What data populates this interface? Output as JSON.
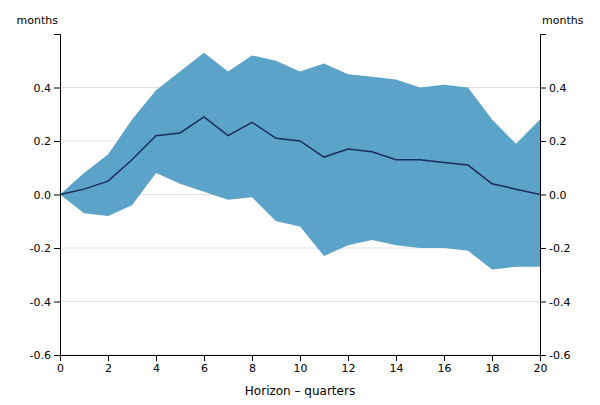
{
  "chart_data": {
    "type": "line",
    "xlabel": "Horizon – quarters",
    "ylabel": "months",
    "y2label": "months",
    "x": [
      0,
      1,
      2,
      3,
      4,
      5,
      6,
      7,
      8,
      9,
      10,
      11,
      12,
      13,
      14,
      15,
      16,
      17,
      18,
      19,
      20
    ],
    "series": [
      {
        "type": "area",
        "color": "#5ba3c9",
        "upper": [
          0.0,
          0.08,
          0.15,
          0.28,
          0.39,
          0.46,
          0.53,
          0.46,
          0.52,
          0.5,
          0.46,
          0.49,
          0.45,
          0.44,
          0.43,
          0.4,
          0.41,
          0.4,
          0.28,
          0.19,
          0.28
        ],
        "lower": [
          0.0,
          -0.07,
          -0.08,
          -0.04,
          0.08,
          0.04,
          0.01,
          -0.02,
          -0.01,
          -0.1,
          -0.12,
          -0.23,
          -0.19,
          -0.17,
          -0.19,
          -0.2,
          -0.2,
          -0.21,
          -0.28,
          -0.27,
          -0.27
        ]
      },
      {
        "type": "line",
        "color": "#1a2e5a",
        "values": [
          0.0,
          0.02,
          0.05,
          0.13,
          0.22,
          0.23,
          0.29,
          0.22,
          0.27,
          0.21,
          0.2,
          0.14,
          0.17,
          0.16,
          0.13,
          0.13,
          0.12,
          0.11,
          0.04,
          0.02,
          0.0
        ]
      }
    ],
    "xlim": [
      0,
      20
    ],
    "xticks": [
      0,
      2,
      4,
      6,
      8,
      10,
      12,
      14,
      16,
      18,
      20
    ],
    "ylim": [
      -0.6,
      0.6
    ],
    "yticks": [
      -0.6,
      -0.4,
      -0.2,
      {
        "value": 0,
        "label": "0.0"
      },
      0.2,
      0.4
    ],
    "y2lim": [
      -0.6,
      0.6
    ],
    "y2ticks": [
      -0.6,
      -0.4,
      -0.2,
      {
        "value": 0,
        "label": "0.0"
      },
      0.2,
      0.4
    ],
    "grid": "y"
  }
}
